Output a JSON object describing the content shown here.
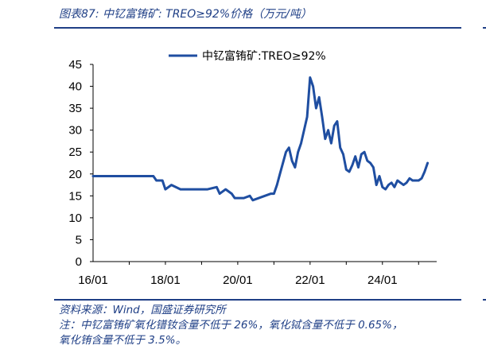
{
  "figure": {
    "title": "图表87:  中钇富铕矿:  TREO≥92%价格（万元/吨）"
  },
  "chart_data": {
    "type": "line",
    "title": "",
    "xlabel": "",
    "ylabel": "",
    "ylim": [
      0,
      45
    ],
    "y_ticks": [
      "0",
      "5",
      "10",
      "15",
      "20",
      "25",
      "30",
      "35",
      "40",
      "45"
    ],
    "x_ticks": [
      "16/01",
      "18/01",
      "20/01",
      "22/01",
      "24/01"
    ],
    "legend_position": "top-center",
    "grid": false,
    "series": [
      {
        "name": "中钇富铕矿:TREO≥92%",
        "color": "#1f4ea1",
        "x": [
          "2016-01",
          "2016-03",
          "2016-06",
          "2016-09",
          "2016-12",
          "2017-03",
          "2017-06",
          "2017-09",
          "2017-10",
          "2017-11",
          "2017-12",
          "2018-01",
          "2018-03",
          "2018-06",
          "2018-09",
          "2018-12",
          "2019-03",
          "2019-06",
          "2019-07",
          "2019-09",
          "2019-11",
          "2019-12",
          "2020-01",
          "2020-03",
          "2020-05",
          "2020-06",
          "2020-08",
          "2020-10",
          "2020-12",
          "2021-01",
          "2021-02",
          "2021-03",
          "2021-05",
          "2021-06",
          "2021-07",
          "2021-08",
          "2021-09",
          "2021-10",
          "2021-11",
          "2021-12",
          "2022-01",
          "2022-02",
          "2022-03",
          "2022-04",
          "2022-05",
          "2022-06",
          "2022-07",
          "2022-08",
          "2022-09",
          "2022-10",
          "2022-11",
          "2022-12",
          "2023-01",
          "2023-02",
          "2023-03",
          "2023-04",
          "2023-05",
          "2023-06",
          "2023-07",
          "2023-08",
          "2023-09",
          "2023-10",
          "2023-11",
          "2023-12",
          "2024-01",
          "2024-02",
          "2024-03",
          "2024-04",
          "2024-05",
          "2024-06",
          "2024-07",
          "2024-08",
          "2024-09",
          "2024-10",
          "2024-11",
          "2024-12",
          "2025-01",
          "2025-02",
          "2025-03",
          "2025-04"
        ],
        "values": [
          19.5,
          19.5,
          19.5,
          19.5,
          19.5,
          19.5,
          19.5,
          19.5,
          18.5,
          18.5,
          18.5,
          16.5,
          17.5,
          16.5,
          16.5,
          16.5,
          16.5,
          17.0,
          15.5,
          16.5,
          15.5,
          14.5,
          14.5,
          14.5,
          15.0,
          14.0,
          14.5,
          15.0,
          15.5,
          15.5,
          17.5,
          20.0,
          25.0,
          26.0,
          23.0,
          21.5,
          25.0,
          27.0,
          30.0,
          33.0,
          42.0,
          40.0,
          35.0,
          37.5,
          33.0,
          28.0,
          30.0,
          27.0,
          31.0,
          32.0,
          26.0,
          24.5,
          21.0,
          20.5,
          22.0,
          24.0,
          21.5,
          24.5,
          25.0,
          23.0,
          22.5,
          21.5,
          17.5,
          19.5,
          17.0,
          16.5,
          17.5,
          18.0,
          17.0,
          18.5,
          18.0,
          17.5,
          18.0,
          19.0,
          18.5,
          18.5,
          18.5,
          19.0,
          20.5,
          22.5
        ]
      }
    ]
  },
  "notes": {
    "source": "资料来源：Wind，国盛证券研究所",
    "note_line1": "注：中钇富铕矿氧化镨钕含量不低于 26%，氧化铽含量不低于 0.65%，",
    "note_line2": "氧化铕含量不低于 3.5%。"
  },
  "colors": {
    "accent": "#1f3f86",
    "series": "#1f4ea1"
  }
}
